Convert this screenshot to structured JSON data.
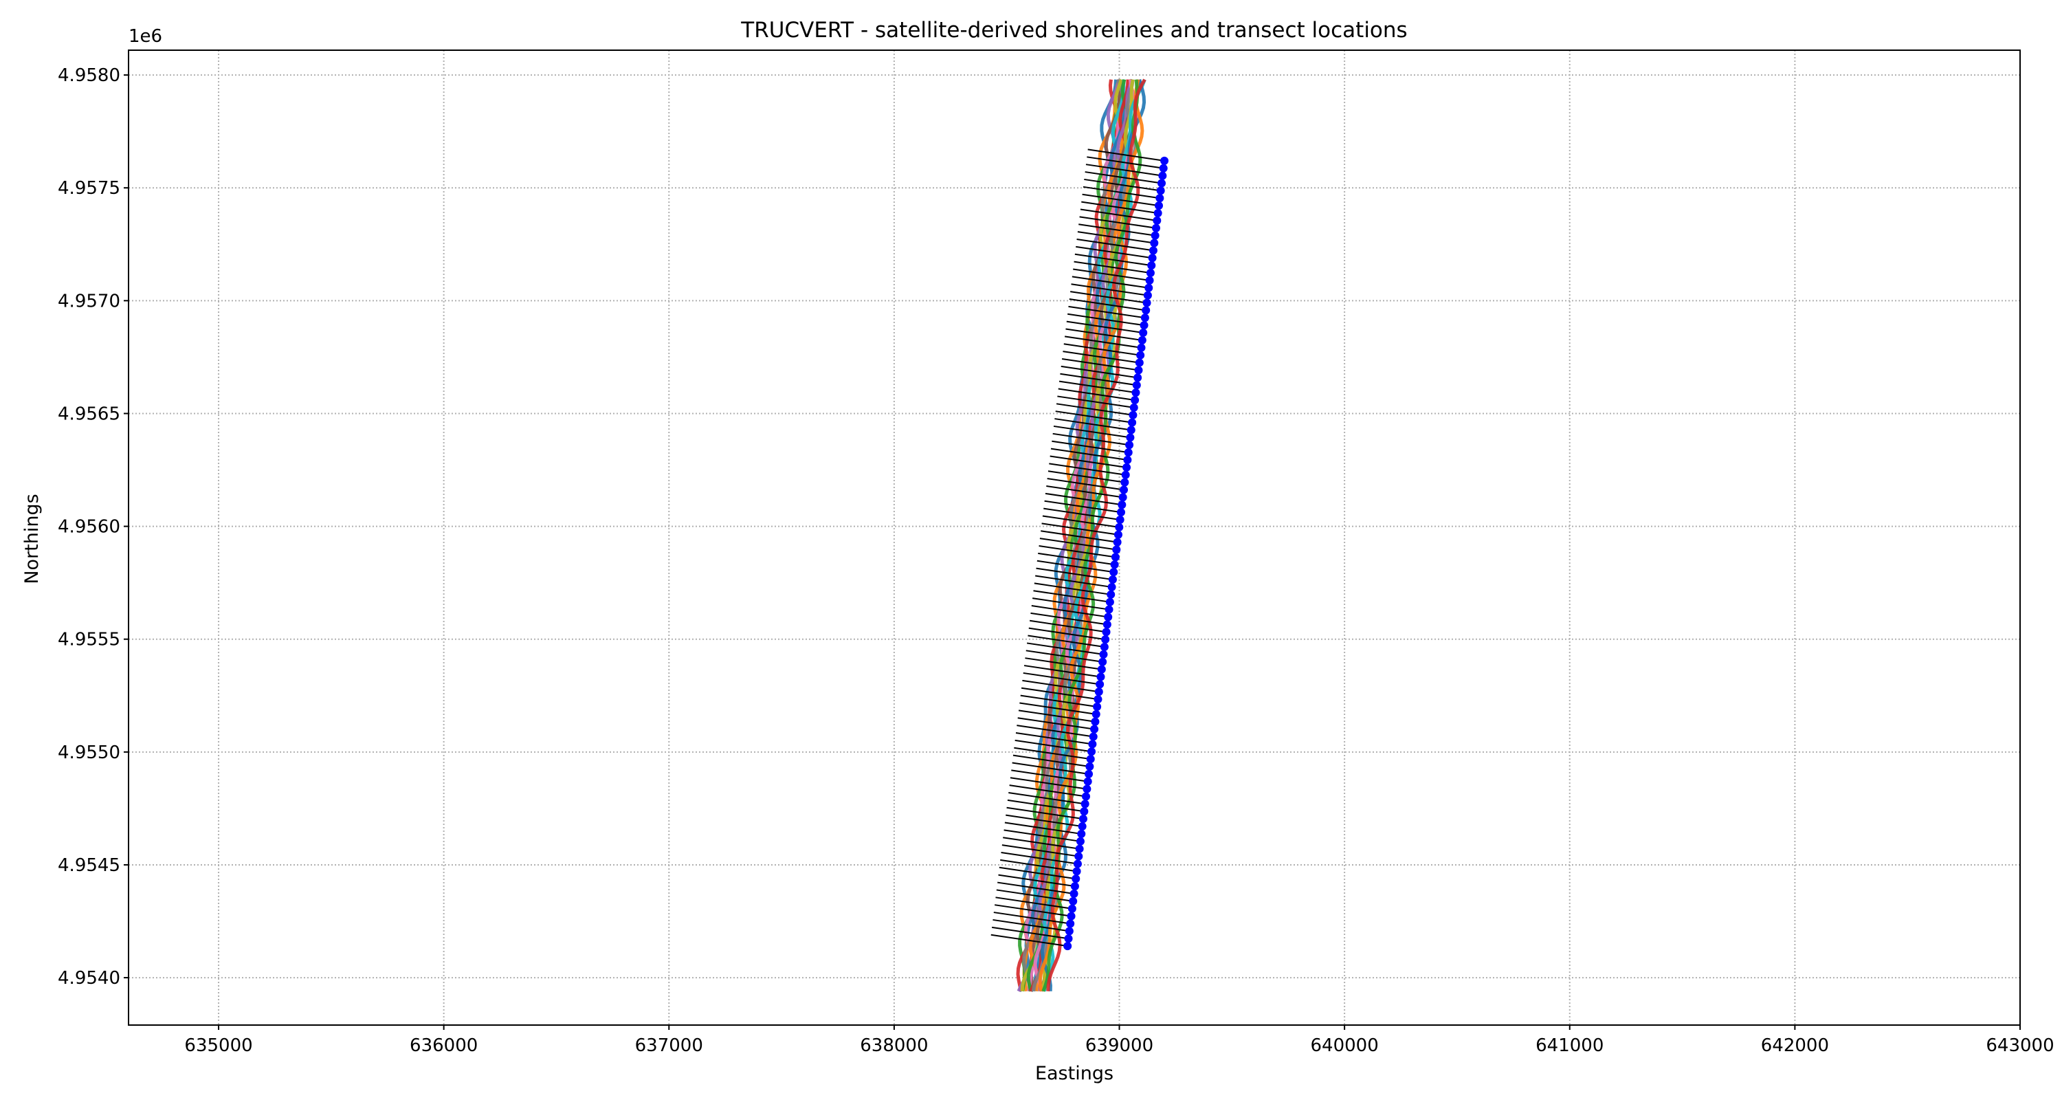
{
  "chart_data": {
    "type": "scatter",
    "title": "TRUCVERT - satellite-derived shorelines and transect locations",
    "xlabel": "Eastings",
    "ylabel": "Northings",
    "y_offset_label": "1e6",
    "xlim": [
      634600,
      643000
    ],
    "ylim": [
      4953790,
      4958110
    ],
    "x_ticks": [
      635000,
      636000,
      637000,
      638000,
      639000,
      640000,
      641000,
      642000,
      643000
    ],
    "x_tick_labels": [
      "635000",
      "636000",
      "637000",
      "638000",
      "639000",
      "640000",
      "641000",
      "642000",
      "643000"
    ],
    "y_ticks": [
      4954000,
      4954500,
      4955000,
      4955500,
      4956000,
      4956500,
      4957000,
      4957500,
      4958000
    ],
    "y_tick_labels": [
      "4.9540",
      "4.9545",
      "4.9550",
      "4.9555",
      "4.9560",
      "4.9565",
      "4.9570",
      "4.9575",
      "4.9580"
    ],
    "grid": true,
    "grid_style": "dotted",
    "legend": "none",
    "transects": {
      "count": 106,
      "color": "#000000",
      "origin_start": [
        638770,
        4954140
      ],
      "origin_end": [
        639200,
        4957620
      ],
      "end_start": [
        638430,
        4954190
      ],
      "end_end": [
        638860,
        4957670
      ],
      "origin_marker_color": "#0000ff"
    },
    "shorelines": {
      "colors": [
        "#1f77b4",
        "#ff7f0e",
        "#2ca02c",
        "#d62728",
        "#9467bd",
        "#8c564b",
        "#e377c2",
        "#7f7f7f",
        "#bcbd22",
        "#17becf"
      ],
      "centerline_start": [
        638620,
        4953940
      ],
      "centerline_end": [
        639040,
        4957980
      ],
      "series_count": 24
    }
  }
}
